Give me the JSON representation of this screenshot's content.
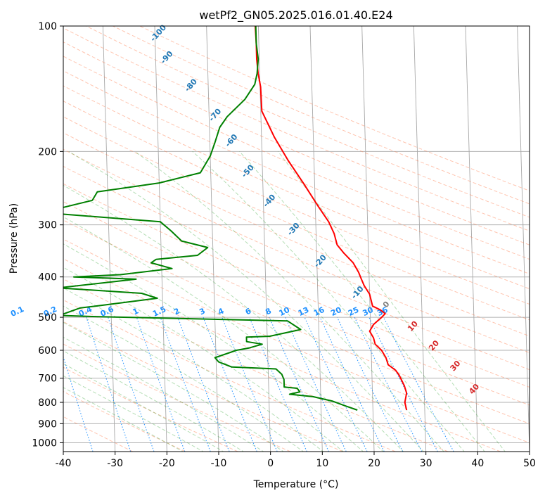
{
  "chart_data": {
    "type": "line",
    "title": "wetPf2_GN05.2025.016.01.40.E24",
    "xlabel": "Temperature (°C)",
    "ylabel": "Pressure (hPa)",
    "xlim": [
      -40,
      50
    ],
    "ylim": [
      1050,
      100
    ],
    "y_scale": "log",
    "grid": true,
    "x_ticks": [
      "-40",
      "-30",
      "-20",
      "-10",
      "0",
      "10",
      "20",
      "30",
      "40",
      "50"
    ],
    "y_ticks": [
      "100",
      "200",
      "300",
      "400",
      "500",
      "600",
      "700",
      "800",
      "900",
      "1000"
    ],
    "series": [
      {
        "color": "#ff0000",
        "points": [
          [
            26.5,
            835
          ],
          [
            26.2,
            800
          ],
          [
            26.6,
            760
          ],
          [
            26.2,
            730
          ],
          [
            25.3,
            690
          ],
          [
            24.6,
            670
          ],
          [
            23.2,
            650
          ],
          [
            22.8,
            625
          ],
          [
            22.0,
            600
          ],
          [
            20.8,
            580
          ],
          [
            20.5,
            560
          ],
          [
            19.8,
            540
          ],
          [
            20.6,
            520
          ],
          [
            22.2,
            500
          ],
          [
            22.9,
            490
          ],
          [
            22.0,
            480
          ],
          [
            20.5,
            470
          ],
          [
            20.0,
            440
          ],
          [
            19.0,
            420
          ],
          [
            18.5,
            405
          ],
          [
            18.0,
            390
          ],
          [
            17.0,
            370
          ],
          [
            15.2,
            350
          ],
          [
            14.0,
            335
          ],
          [
            13.5,
            315
          ],
          [
            12.5,
            295
          ],
          [
            10.5,
            270
          ],
          [
            8.0,
            240
          ],
          [
            5.0,
            210
          ],
          [
            2.5,
            185
          ],
          [
            0.2,
            160
          ],
          [
            0.1,
            140
          ],
          [
            -0.3,
            130
          ],
          [
            -0.5,
            120
          ],
          [
            -0.5,
            110
          ],
          [
            -0.6,
            100
          ]
        ]
      },
      {
        "color": "#008000",
        "points": [
          [
            17.0,
            835
          ],
          [
            14.6,
            815
          ],
          [
            12.3,
            795
          ],
          [
            8.5,
            775
          ],
          [
            4.0,
            765
          ],
          [
            6.0,
            755
          ],
          [
            5.5,
            740
          ],
          [
            3.0,
            735
          ],
          [
            3.0,
            720
          ],
          [
            3.0,
            705
          ],
          [
            2.6,
            685
          ],
          [
            1.5,
            665
          ],
          [
            -7.0,
            658
          ],
          [
            -9.5,
            640
          ],
          [
            -10.2,
            625
          ],
          [
            -6.0,
            600
          ],
          [
            -3.5,
            592
          ],
          [
            -1.0,
            580
          ],
          [
            -4.0,
            572
          ],
          [
            -4.0,
            558
          ],
          [
            0.5,
            555
          ],
          [
            6.5,
            535
          ],
          [
            4.0,
            510
          ],
          [
            -33.0,
            498
          ],
          [
            -40.0,
            495
          ],
          [
            -36.0,
            475
          ],
          [
            -33.0,
            470
          ],
          [
            -21.0,
            450
          ],
          [
            -24.0,
            438
          ],
          [
            -40.0,
            425
          ],
          [
            -25.0,
            405
          ],
          [
            -37.0,
            400
          ],
          [
            -28.0,
            395
          ],
          [
            -18.0,
            382
          ],
          [
            -22.0,
            370
          ],
          [
            -21.0,
            363
          ],
          [
            -13.0,
            355
          ],
          [
            -11.0,
            340
          ],
          [
            -16.0,
            328
          ],
          [
            -18.0,
            310
          ],
          [
            -20.0,
            295
          ],
          [
            -40.0,
            282
          ],
          [
            -40.0,
            275
          ],
          [
            -33.0,
            262
          ],
          [
            -32.0,
            250
          ],
          [
            -20.0,
            238
          ],
          [
            -12.0,
            225
          ],
          [
            -10.0,
            205
          ],
          [
            -9.0,
            190
          ],
          [
            -8.0,
            175
          ],
          [
            -6.5,
            165
          ],
          [
            -3.0,
            150
          ],
          [
            -1.0,
            138
          ],
          [
            -0.5,
            130
          ],
          [
            -0.2,
            120
          ],
          [
            -0.5,
            110
          ],
          [
            -0.5,
            100
          ]
        ]
      }
    ],
    "dry_adiabat_labels": [
      "-100",
      "-90",
      "-80",
      "-70",
      "-60",
      "-50",
      "-40",
      "-30",
      "-20",
      "-10",
      "0",
      "10",
      "20",
      "30",
      "40"
    ],
    "mixing_ratio_labels": [
      "0.1",
      "0.2",
      "0.4",
      "0.6",
      "1",
      "1.5",
      "2",
      "3",
      "4",
      "6",
      "8",
      "10",
      "13",
      "16",
      "20",
      "25",
      "30",
      "36"
    ],
    "colors": {
      "temperature": "#ff0000",
      "dewpoint": "#008000",
      "isotherm": "#808080",
      "dry_adiabat": "#ff7f50",
      "moist_adiabat": "#2ca02c",
      "mixing_ratio": "#1e90ff",
      "dry_label": "#1f77b4",
      "warm_label": "#d62728",
      "neutral_label": "#7f7f7f"
    }
  }
}
